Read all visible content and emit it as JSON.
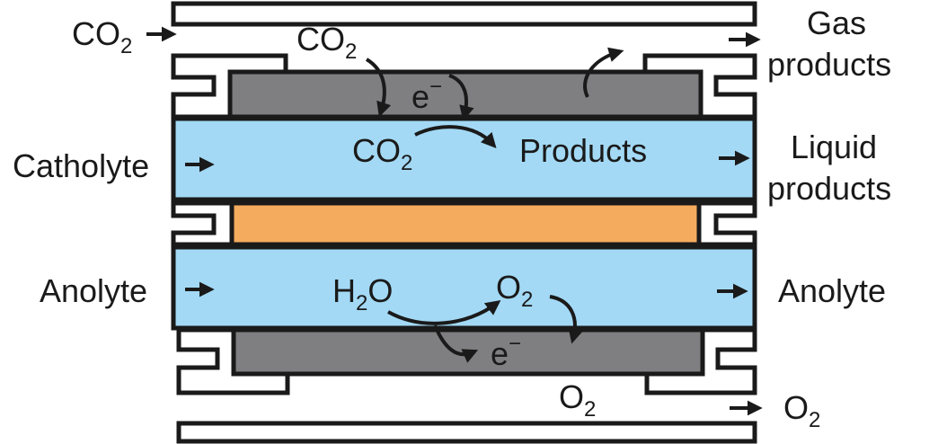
{
  "colors": {
    "electrolyte": "#a3d9f5",
    "electrode": "#7f7f82",
    "membrane": "#f5ab5e",
    "outline": "#1a1a1a"
  },
  "labels": {
    "co2_inlet": "CO",
    "co2_inlet_sub": "2",
    "co2_gas": "CO",
    "co2_gas_sub": "2",
    "electron_top": "e",
    "electron_top_sup": "−",
    "co2_reactant": "CO",
    "co2_reactant_sub": "2",
    "products": "Products",
    "catholyte": "Catholyte",
    "gas_products_line1": "Gas",
    "gas_products_line2": "products",
    "liquid_products_line1": "Liquid",
    "liquid_products_line2": "products",
    "anolyte_in": "Anolyte",
    "anolyte_out": "Anolyte",
    "h2o": "H",
    "h2o_sub": "2",
    "h2o_rest": "O",
    "o2_product": "O",
    "o2_product_sub": "2",
    "electron_bottom": "e",
    "electron_bottom_sup": "−",
    "o2_gas": "O",
    "o2_gas_sub": "2",
    "o2_outlet": "O",
    "o2_outlet_sub": "2"
  },
  "icons": {
    "flow_arrows": "arrow-right-icon",
    "reaction_arrows": "curved-arrow-icon"
  }
}
